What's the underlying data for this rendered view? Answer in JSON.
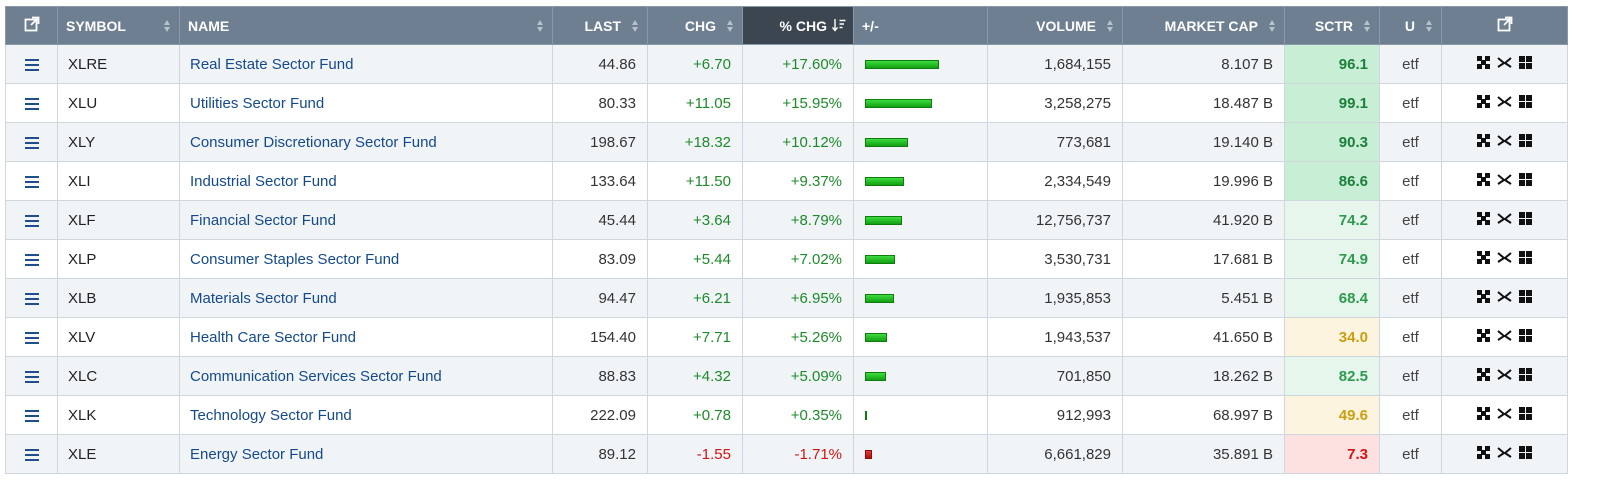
{
  "header": {
    "symbol": "SYMBOL",
    "name": "NAME",
    "last": "LAST",
    "chg": "CHG",
    "pct_chg": "% CHG",
    "plus_minus": "+/-",
    "volume": "VOLUME",
    "market_cap": "MARKET CAP",
    "sctr": "SCTR",
    "u": "U"
  },
  "icons": {
    "open_external": "external-link-icon",
    "row_menu": "hamburger-menu-icon",
    "chart": "candlestick-chart-icon",
    "compare": "compare-arrows-icon",
    "grid": "grid-view-icon"
  },
  "colors": {
    "header_bg": "#6e7f91",
    "sorted_header_bg": "#3c4651",
    "positive": "#1d8a2b",
    "negative": "#d11414",
    "link": "#154a8a"
  },
  "rows": [
    {
      "symbol": "XLRE",
      "name": "Real Estate Sector Fund",
      "last": "44.86",
      "chg": "+6.70",
      "pct": "+17.60%",
      "pct_value": 17.6,
      "volume": "1,684,155",
      "market_cap": "8.107 B",
      "sctr": "96.1",
      "u": "etf"
    },
    {
      "symbol": "XLU",
      "name": "Utilities Sector Fund",
      "last": "80.33",
      "chg": "+11.05",
      "pct": "+15.95%",
      "pct_value": 15.95,
      "volume": "3,258,275",
      "market_cap": "18.487 B",
      "sctr": "99.1",
      "u": "etf"
    },
    {
      "symbol": "XLY",
      "name": "Consumer Discretionary Sector Fund",
      "last": "198.67",
      "chg": "+18.32",
      "pct": "+10.12%",
      "pct_value": 10.12,
      "volume": "773,681",
      "market_cap": "19.140 B",
      "sctr": "90.3",
      "u": "etf"
    },
    {
      "symbol": "XLI",
      "name": "Industrial Sector Fund",
      "last": "133.64",
      "chg": "+11.50",
      "pct": "+9.37%",
      "pct_value": 9.37,
      "volume": "2,334,549",
      "market_cap": "19.996 B",
      "sctr": "86.6",
      "u": "etf"
    },
    {
      "symbol": "XLF",
      "name": "Financial Sector Fund",
      "last": "45.44",
      "chg": "+3.64",
      "pct": "+8.79%",
      "pct_value": 8.79,
      "volume": "12,756,737",
      "market_cap": "41.920 B",
      "sctr": "74.2",
      "u": "etf"
    },
    {
      "symbol": "XLP",
      "name": "Consumer Staples Sector Fund",
      "last": "83.09",
      "chg": "+5.44",
      "pct": "+7.02%",
      "pct_value": 7.02,
      "volume": "3,530,731",
      "market_cap": "17.681 B",
      "sctr": "74.9",
      "u": "etf"
    },
    {
      "symbol": "XLB",
      "name": "Materials Sector Fund",
      "last": "94.47",
      "chg": "+6.21",
      "pct": "+6.95%",
      "pct_value": 6.95,
      "volume": "1,935,853",
      "market_cap": "5.451 B",
      "sctr": "68.4",
      "u": "etf"
    },
    {
      "symbol": "XLV",
      "name": "Health Care Sector Fund",
      "last": "154.40",
      "chg": "+7.71",
      "pct": "+5.26%",
      "pct_value": 5.26,
      "volume": "1,943,537",
      "market_cap": "41.650 B",
      "sctr": "34.0",
      "u": "etf"
    },
    {
      "symbol": "XLC",
      "name": "Communication Services Sector Fund",
      "last": "88.83",
      "chg": "+4.32",
      "pct": "+5.09%",
      "pct_value": 5.09,
      "volume": "701,850",
      "market_cap": "18.262 B",
      "sctr": "82.5",
      "u": "etf"
    },
    {
      "symbol": "XLK",
      "name": "Technology Sector Fund",
      "last": "222.09",
      "chg": "+0.78",
      "pct": "+0.35%",
      "pct_value": 0.35,
      "volume": "912,993",
      "market_cap": "68.997 B",
      "sctr": "49.6",
      "u": "etf"
    },
    {
      "symbol": "XLE",
      "name": "Energy Sector Fund",
      "last": "89.12",
      "chg": "-1.55",
      "pct": "-1.71%",
      "pct_value": -1.71,
      "volume": "6,661,829",
      "market_cap": "35.891 B",
      "sctr": "7.3",
      "u": "etf"
    }
  ]
}
